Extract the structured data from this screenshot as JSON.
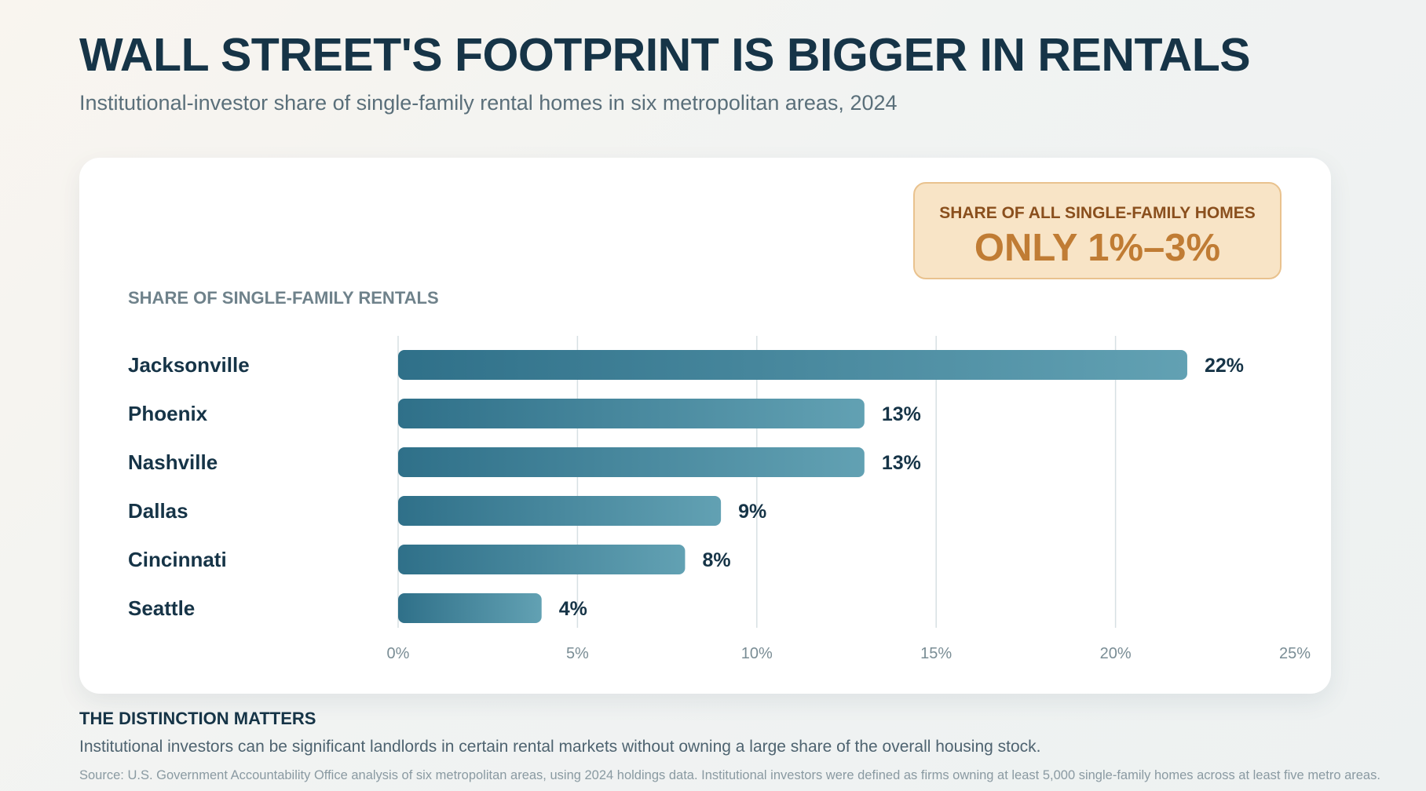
{
  "header": {
    "title": "WALL STREET'S FOOTPRINT IS BIGGER IN RENTALS",
    "subtitle": "Institutional-investor share of single-family rental homes in six metropolitan areas, 2024"
  },
  "callout": {
    "label": "SHARE OF ALL SINGLE-FAMILY HOMES",
    "value": "ONLY 1%–3%"
  },
  "chart_heading": "SHARE OF SINGLE-FAMILY RENTALS",
  "chart_data": {
    "type": "bar",
    "orientation": "horizontal",
    "title": "",
    "xlabel": "",
    "ylabel": "SHARE OF SINGLE-FAMILY RENTALS",
    "categories": [
      "Jacksonville",
      "Phoenix",
      "Nashville",
      "Dallas",
      "Cincinnati",
      "Seattle"
    ],
    "values": [
      22,
      13,
      13,
      9,
      8,
      4
    ],
    "value_labels": [
      "22%",
      "13%",
      "13%",
      "9%",
      "8%",
      "4%"
    ],
    "xlim": [
      0,
      25
    ],
    "ticks": [
      0,
      5,
      10,
      15,
      20,
      25
    ],
    "tick_labels": [
      "0%",
      "5%",
      "10%",
      "15%",
      "20%",
      "25%"
    ],
    "grid": true,
    "legend": "none",
    "colors": {
      "bar_start": "#2f7089",
      "bar_end": "#62a1b3",
      "grid": "#d7e0e3"
    }
  },
  "footer": {
    "heading": "THE DISTINCTION MATTERS",
    "text": "Institutional investors can be significant landlords in certain rental markets without owning a large share of the overall housing stock.",
    "source": "Source: U.S. Government Accountability Office analysis of six metropolitan areas, using 2024 holdings data. Institutional investors were defined as firms owning at least 5,000 single-family homes across at least five metro areas."
  }
}
